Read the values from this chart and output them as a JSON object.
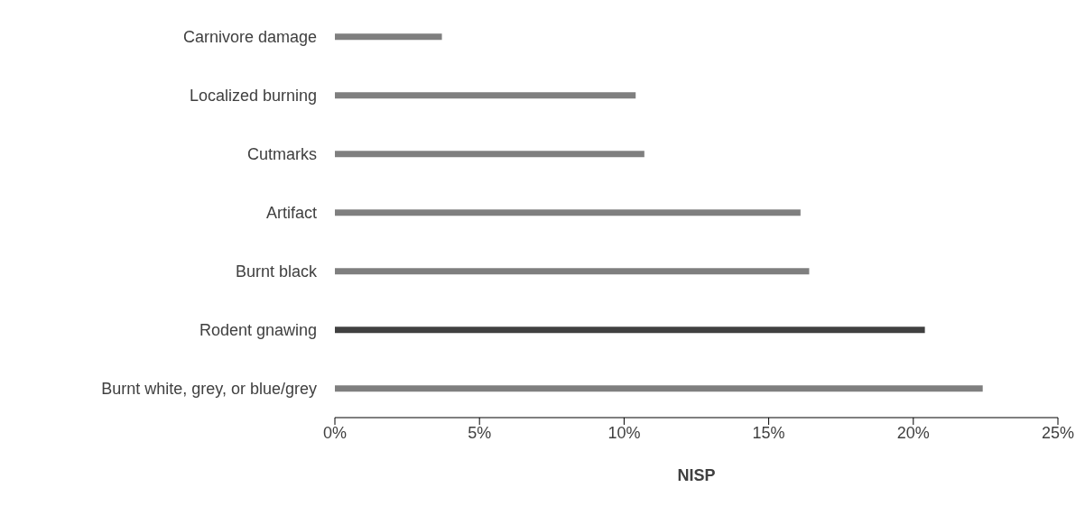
{
  "chart_data": {
    "type": "bar",
    "orientation": "horizontal",
    "xlabel": "NISP",
    "categories": [
      "Carnivore damage",
      "Localized burning",
      "Cutmarks",
      "Artifact",
      "Burnt black",
      "Rodent gnawing",
      "Burnt white, grey, or blue/grey"
    ],
    "values": [
      3.7,
      10.4,
      10.7,
      16.1,
      16.4,
      20.4,
      22.4
    ],
    "colors": [
      "#7f7f7f",
      "#7f7f7f",
      "#7f7f7f",
      "#7f7f7f",
      "#7f7f7f",
      "#404040",
      "#7f7f7f"
    ],
    "xlim": [
      0,
      25
    ],
    "xticks": [
      {
        "value": 0,
        "label": "0%"
      },
      {
        "value": 5,
        "label": "5%"
      },
      {
        "value": 10,
        "label": "10%"
      },
      {
        "value": 15,
        "label": "15%"
      },
      {
        "value": 20,
        "label": "20%"
      },
      {
        "value": 25,
        "label": "25%"
      }
    ],
    "grid": false,
    "legend": false
  }
}
